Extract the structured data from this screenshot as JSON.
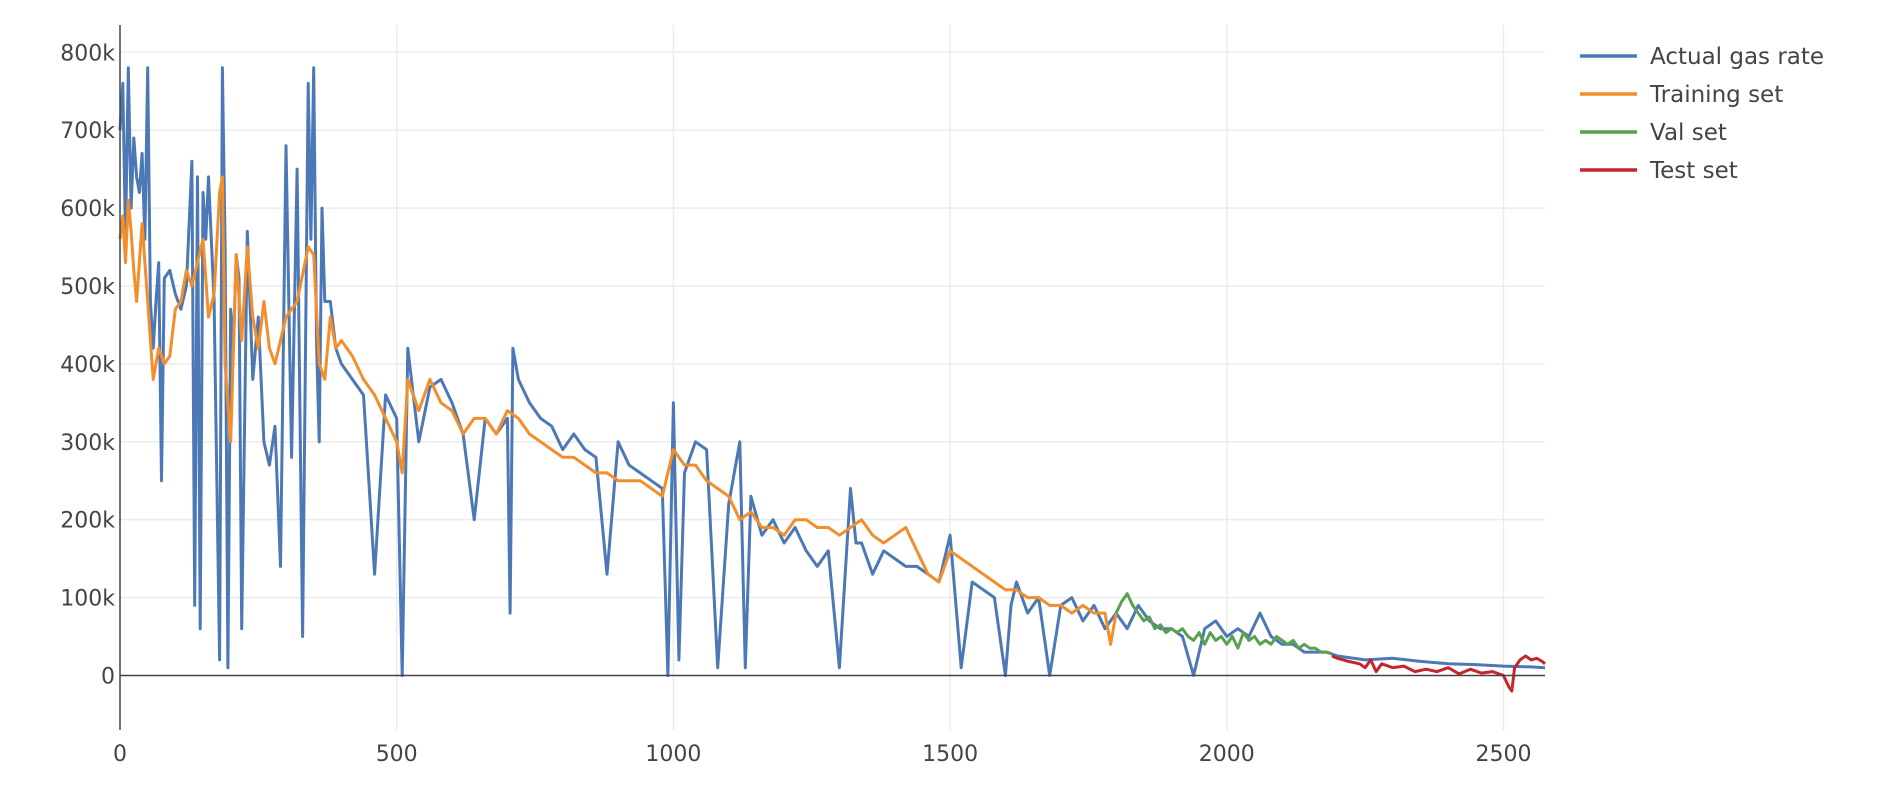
{
  "chart_data": {
    "type": "line",
    "title": "",
    "xlabel": "",
    "ylabel": "",
    "xlim": [
      0,
      2575
    ],
    "ylim": [
      -70000,
      835000
    ],
    "grid": true,
    "legend_position": "top-right (outside plot)",
    "x_ticks": [
      0,
      500,
      1000,
      1500,
      2000,
      2500
    ],
    "x_tick_labels": [
      "0",
      "500",
      "1000",
      "1500",
      "2000",
      "2500"
    ],
    "y_ticks": [
      0,
      100000,
      200000,
      300000,
      400000,
      500000,
      600000,
      700000,
      800000
    ],
    "y_tick_labels": [
      "0",
      "100k",
      "200k",
      "300k",
      "400k",
      "500k",
      "600k",
      "700k",
      "800k"
    ],
    "series": [
      {
        "name": "Actual gas rate",
        "color": "#4c78b6",
        "x": [
          0,
          5,
          10,
          15,
          20,
          25,
          30,
          35,
          40,
          45,
          50,
          55,
          60,
          65,
          70,
          75,
          80,
          90,
          100,
          110,
          120,
          130,
          135,
          140,
          145,
          150,
          155,
          160,
          170,
          180,
          185,
          190,
          195,
          200,
          205,
          210,
          215,
          220,
          230,
          240,
          250,
          260,
          270,
          280,
          290,
          300,
          310,
          320,
          330,
          340,
          345,
          350,
          355,
          360,
          365,
          370,
          380,
          390,
          400,
          420,
          440,
          460,
          480,
          500,
          510,
          520,
          540,
          560,
          580,
          600,
          620,
          640,
          660,
          680,
          700,
          705,
          710,
          720,
          740,
          760,
          780,
          800,
          820,
          840,
          860,
          880,
          900,
          920,
          940,
          960,
          980,
          990,
          1000,
          1010,
          1020,
          1040,
          1060,
          1080,
          1100,
          1120,
          1130,
          1140,
          1160,
          1180,
          1200,
          1220,
          1240,
          1260,
          1280,
          1300,
          1320,
          1330,
          1340,
          1360,
          1380,
          1400,
          1420,
          1440,
          1460,
          1480,
          1500,
          1520,
          1540,
          1560,
          1580,
          1600,
          1610,
          1620,
          1640,
          1660,
          1680,
          1700,
          1720,
          1740,
          1760,
          1780,
          1800,
          1820,
          1840,
          1860,
          1880,
          1900,
          1920,
          1940,
          1960,
          1980,
          2000,
          2020,
          2040,
          2060,
          2080,
          2100,
          2120,
          2140,
          2160,
          2180,
          2200,
          2250,
          2300,
          2350,
          2400,
          2450,
          2500,
          2550,
          2575
        ],
        "y": [
          700000,
          760000,
          560000,
          780000,
          600000,
          690000,
          640000,
          620000,
          670000,
          560000,
          780000,
          480000,
          420000,
          480000,
          530000,
          250000,
          510000,
          520000,
          490000,
          470000,
          500000,
          660000,
          90000,
          640000,
          60000,
          620000,
          560000,
          640000,
          480000,
          20000,
          780000,
          550000,
          10000,
          470000,
          420000,
          540000,
          510000,
          60000,
          570000,
          380000,
          460000,
          300000,
          270000,
          320000,
          140000,
          680000,
          280000,
          650000,
          50000,
          760000,
          560000,
          780000,
          430000,
          300000,
          600000,
          480000,
          480000,
          420000,
          400000,
          380000,
          360000,
          130000,
          360000,
          330000,
          0,
          420000,
          300000,
          370000,
          380000,
          350000,
          310000,
          200000,
          330000,
          310000,
          330000,
          80000,
          420000,
          380000,
          350000,
          330000,
          320000,
          290000,
          310000,
          290000,
          280000,
          130000,
          300000,
          270000,
          260000,
          250000,
          240000,
          0,
          350000,
          20000,
          260000,
          300000,
          290000,
          10000,
          220000,
          300000,
          10000,
          230000,
          180000,
          200000,
          170000,
          190000,
          160000,
          140000,
          160000,
          10000,
          240000,
          170000,
          170000,
          130000,
          160000,
          150000,
          140000,
          140000,
          130000,
          120000,
          180000,
          10000,
          120000,
          110000,
          100000,
          0,
          90000,
          120000,
          80000,
          100000,
          0,
          90000,
          100000,
          70000,
          90000,
          60000,
          80000,
          60000,
          90000,
          70000,
          60000,
          60000,
          50000,
          0,
          60000,
          70000,
          50000,
          60000,
          50000,
          80000,
          50000,
          40000,
          40000,
          30000,
          30000,
          30000,
          25000,
          20000,
          22000,
          18000,
          15000,
          14000,
          12000,
          11000,
          10000
        ]
      },
      {
        "name": "Training set",
        "color": "#f28e2b",
        "x": [
          0,
          5,
          10,
          15,
          20,
          25,
          30,
          40,
          50,
          60,
          70,
          80,
          90,
          100,
          110,
          120,
          130,
          140,
          150,
          160,
          170,
          180,
          185,
          190,
          200,
          210,
          220,
          230,
          240,
          250,
          260,
          270,
          280,
          290,
          300,
          320,
          340,
          350,
          360,
          370,
          380,
          390,
          400,
          420,
          440,
          460,
          480,
          500,
          510,
          520,
          540,
          560,
          580,
          600,
          620,
          640,
          660,
          680,
          700,
          720,
          740,
          760,
          780,
          800,
          820,
          840,
          860,
          880,
          900,
          920,
          940,
          960,
          980,
          1000,
          1020,
          1040,
          1060,
          1080,
          1100,
          1120,
          1140,
          1160,
          1180,
          1200,
          1220,
          1240,
          1260,
          1280,
          1300,
          1320,
          1340,
          1360,
          1380,
          1400,
          1420,
          1440,
          1460,
          1480,
          1500,
          1520,
          1540,
          1560,
          1580,
          1600,
          1620,
          1640,
          1660,
          1680,
          1700,
          1720,
          1740,
          1760,
          1780,
          1790,
          1800
        ],
        "y": [
          560000,
          590000,
          530000,
          610000,
          570000,
          520000,
          480000,
          580000,
          480000,
          380000,
          420000,
          400000,
          410000,
          470000,
          480000,
          520000,
          500000,
          530000,
          560000,
          460000,
          490000,
          620000,
          640000,
          400000,
          300000,
          540000,
          430000,
          550000,
          460000,
          420000,
          480000,
          420000,
          400000,
          430000,
          460000,
          480000,
          550000,
          540000,
          400000,
          380000,
          460000,
          420000,
          430000,
          410000,
          380000,
          360000,
          330000,
          300000,
          260000,
          380000,
          340000,
          380000,
          350000,
          340000,
          310000,
          330000,
          330000,
          310000,
          340000,
          330000,
          310000,
          300000,
          290000,
          280000,
          280000,
          270000,
          260000,
          260000,
          250000,
          250000,
          250000,
          240000,
          230000,
          290000,
          270000,
          270000,
          250000,
          240000,
          230000,
          200000,
          210000,
          190000,
          190000,
          180000,
          200000,
          200000,
          190000,
          190000,
          180000,
          190000,
          200000,
          180000,
          170000,
          180000,
          190000,
          160000,
          130000,
          120000,
          160000,
          150000,
          140000,
          130000,
          120000,
          110000,
          110000,
          100000,
          100000,
          90000,
          90000,
          80000,
          90000,
          80000,
          80000,
          40000,
          80000
        ]
      },
      {
        "name": "Val set",
        "color": "#59a14f",
        "x": [
          1800,
          1810,
          1820,
          1830,
          1840,
          1850,
          1860,
          1870,
          1880,
          1890,
          1900,
          1910,
          1920,
          1930,
          1940,
          1950,
          1960,
          1970,
          1980,
          1990,
          2000,
          2010,
          2020,
          2030,
          2040,
          2050,
          2060,
          2070,
          2080,
          2090,
          2100,
          2110,
          2120,
          2130,
          2140,
          2150,
          2160,
          2170,
          2180,
          2190
        ],
        "y": [
          80000,
          95000,
          105000,
          90000,
          80000,
          70000,
          75000,
          60000,
          65000,
          55000,
          60000,
          55000,
          60000,
          50000,
          45000,
          55000,
          40000,
          55000,
          45000,
          50000,
          40000,
          50000,
          35000,
          55000,
          45000,
          50000,
          40000,
          45000,
          40000,
          50000,
          45000,
          40000,
          45000,
          35000,
          40000,
          35000,
          35000,
          30000,
          30000,
          28000
        ]
      },
      {
        "name": "Test set",
        "color": "#c4262e",
        "x": [
          2190,
          2200,
          2220,
          2240,
          2250,
          2260,
          2270,
          2280,
          2300,
          2320,
          2340,
          2360,
          2380,
          2400,
          2420,
          2440,
          2460,
          2480,
          2500,
          2510,
          2515,
          2520,
          2530,
          2540,
          2550,
          2560,
          2570,
          2575
        ],
        "y": [
          25000,
          22000,
          18000,
          15000,
          10000,
          20000,
          5000,
          15000,
          10000,
          12000,
          5000,
          8000,
          5000,
          10000,
          2000,
          8000,
          3000,
          5000,
          0,
          -15000,
          -20000,
          10000,
          20000,
          25000,
          20000,
          22000,
          18000,
          15000
        ]
      }
    ]
  }
}
